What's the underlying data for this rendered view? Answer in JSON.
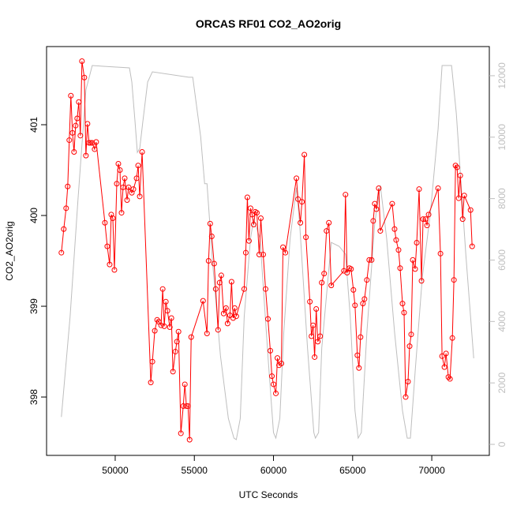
{
  "chart_data": {
    "type": "line",
    "title": "ORCAS RF01 CO2_AO2orig",
    "xlabel": "UTC Seconds",
    "ylabel": "CO2_AO2orig",
    "xlim": [
      45664,
      73636
    ],
    "ylim": [
      397.357,
      401.861
    ],
    "y2lim": [
      -359,
      12949
    ],
    "xticks": [
      50000,
      55000,
      60000,
      65000,
      70000
    ],
    "yticks": [
      398,
      399,
      400,
      401
    ],
    "y2ticks": [
      0,
      2000,
      4000,
      6000,
      8000,
      10000,
      12000
    ],
    "y2tick_color": "#bebebe",
    "series": [
      {
        "color": "#ff0000",
        "marker": "circle",
        "x": [
          46600,
          46750,
          46900,
          47000,
          47100,
          47200,
          47300,
          47400,
          47500,
          47600,
          47700,
          47800,
          47900,
          48050,
          48150,
          48250,
          48350,
          48450,
          48550,
          48700,
          48800,
          49350,
          49500,
          49650,
          49750,
          49850,
          49950,
          50100,
          50200,
          50300,
          50400,
          50500,
          50600,
          50750,
          50850,
          51050,
          51150,
          51350,
          51450,
          51550,
          51700,
          52250,
          52350,
          52500,
          52650,
          52750,
          52900,
          53000,
          53100,
          53200,
          53300,
          53450,
          53550,
          53650,
          53800,
          53900,
          54000,
          54150,
          54300,
          54400,
          54500,
          54600,
          54700,
          54800,
          55550,
          55800,
          55900,
          56000,
          56100,
          56250,
          56350,
          56500,
          56600,
          56700,
          56850,
          57000,
          57100,
          57250,
          57350,
          57450,
          57550,
          57650,
          58150,
          58250,
          58350,
          58450,
          58550,
          58650,
          58750,
          58850,
          58950,
          59100,
          59200,
          59350,
          59500,
          59650,
          59800,
          59900,
          60000,
          60150,
          60250,
          60350,
          60500,
          60600,
          60750,
          61450,
          61550,
          61700,
          61800,
          61950,
          62050,
          62300,
          62400,
          62500,
          62600,
          62700,
          62800,
          62950,
          63050,
          63200,
          63350,
          63500,
          63650,
          64450,
          64550,
          64650,
          64800,
          64900,
          65050,
          65150,
          65300,
          65400,
          65500,
          65650,
          65750,
          65900,
          66050,
          66200,
          66300,
          66400,
          66500,
          66650,
          66750,
          67500,
          67650,
          67750,
          67900,
          68000,
          68150,
          68250,
          68350,
          68500,
          68600,
          68700,
          68800,
          68950,
          69050,
          69200,
          69350,
          69450,
          69600,
          69700,
          69800,
          70400,
          70550,
          70650,
          70800,
          70900,
          71050,
          71150,
          71300,
          71400,
          71500,
          71600,
          71700,
          71800,
          71950,
          72050,
          72450,
          72550
        ],
        "values": [
          399.59,
          399.85,
          400.08,
          400.32,
          400.83,
          401.32,
          400.91,
          400.7,
          400.99,
          401.07,
          401.25,
          400.88,
          401.7,
          401.52,
          400.66,
          401.01,
          400.8,
          400.8,
          400.8,
          400.73,
          400.81,
          399.92,
          399.66,
          399.46,
          400.01,
          399.97,
          399.4,
          400.35,
          400.57,
          400.5,
          400.03,
          400.31,
          400.41,
          400.17,
          400.31,
          400.25,
          400.29,
          400.41,
          400.55,
          400.21,
          400.7,
          398.16,
          398.39,
          398.73,
          398.85,
          398.83,
          398.79,
          399.19,
          398.78,
          399.05,
          398.95,
          398.77,
          398.87,
          398.28,
          398.5,
          398.61,
          398.72,
          397.6,
          397.9,
          398.14,
          397.9,
          397.9,
          397.53,
          398.66,
          399.06,
          398.7,
          399.5,
          399.91,
          399.77,
          399.47,
          399.19,
          398.74,
          399.26,
          399.34,
          398.92,
          398.98,
          398.81,
          398.9,
          399.27,
          398.87,
          398.98,
          398.89,
          399.19,
          399.59,
          400.2,
          399.72,
          400.08,
          400.01,
          399.9,
          400.04,
          400.03,
          399.57,
          399.97,
          399.57,
          399.19,
          398.86,
          398.51,
          398.23,
          398.14,
          398.04,
          398.43,
          398.35,
          398.37,
          399.65,
          399.59,
          400.41,
          400.18,
          399.92,
          400.15,
          400.67,
          399.76,
          399.05,
          398.67,
          398.79,
          398.44,
          398.97,
          398.61,
          398.67,
          399.26,
          399.36,
          399.83,
          399.92,
          399.23,
          399.39,
          400.23,
          399.37,
          399.42,
          399.41,
          399.18,
          399.01,
          398.46,
          398.32,
          398.66,
          399.03,
          399.08,
          399.29,
          399.51,
          399.51,
          399.94,
          400.13,
          400.07,
          400.3,
          399.83,
          400.13,
          399.85,
          399.73,
          399.62,
          399.42,
          399.03,
          398.93,
          398.0,
          398.17,
          398.56,
          398.69,
          399.51,
          399.41,
          399.7,
          400.29,
          399.28,
          399.96,
          399.96,
          399.89,
          400.01,
          400.3,
          399.58,
          398.45,
          398.33,
          398.48,
          398.22,
          398.2,
          398.65,
          399.29,
          400.55,
          400.53,
          400.19,
          400.44,
          399.96,
          400.22,
          400.06,
          399.66
        ]
      },
      {
        "color": "#bebebe",
        "axis": "y2",
        "x": [
          46600,
          47150,
          47650,
          48150,
          48550,
          50900,
          51050,
          51250,
          51400,
          51550,
          51750,
          52050,
          52350,
          54650,
          54900,
          55400,
          55650,
          55800,
          56150,
          56650,
          57150,
          57500,
          57650,
          57900,
          58150,
          58550,
          58750,
          59150,
          59650,
          60000,
          60150,
          60400,
          60650,
          61050,
          61450,
          61650,
          62150,
          62550,
          62650,
          62850,
          63050,
          63650,
          64150,
          64550,
          64850,
          65150,
          65350,
          65550,
          65900,
          66400,
          66750,
          67150,
          67650,
          68150,
          68450,
          68650,
          68950,
          69400,
          69900,
          70400,
          70650,
          71250,
          71550,
          72150,
          72650
        ],
        "values": [
          892,
          4153,
          7975,
          11541,
          12331,
          12255,
          11796,
          10522,
          9503,
          9631,
          10522,
          11796,
          12127,
          11949,
          11949,
          10013,
          8484,
          8484,
          5936,
          2879,
          841,
          204,
          153,
          841,
          4153,
          6701,
          7338,
          6701,
          2879,
          382,
          204,
          841,
          3643,
          6701,
          8357,
          7210,
          3134,
          382,
          204,
          382,
          3134,
          6573,
          6446,
          6191,
          4153,
          1096,
          204,
          382,
          3643,
          7210,
          8433,
          6701,
          3643,
          1096,
          204,
          204,
          2369,
          5427,
          7465,
          10268,
          12331,
          12331,
          10777,
          6191,
          2803
        ]
      }
    ]
  }
}
